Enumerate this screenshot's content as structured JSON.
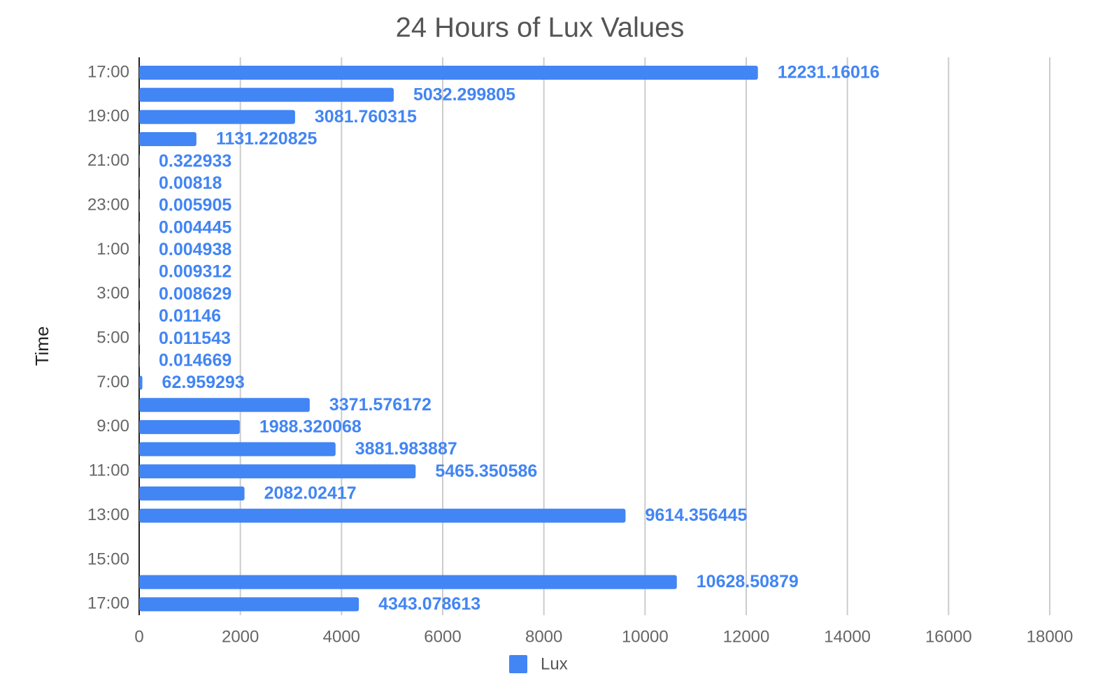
{
  "chart_data": {
    "type": "hbar",
    "title": "24 Hours of Lux Values",
    "y_label": "Time",
    "categories": [
      "17:00",
      null,
      "19:00",
      null,
      "21:00",
      null,
      "23:00",
      null,
      "1:00",
      null,
      "3:00",
      null,
      "5:00",
      null,
      "7:00",
      null,
      "9:00",
      null,
      "11:00",
      null,
      "13:00",
      null,
      "15:00",
      null,
      "17:00"
    ],
    "series": [
      {
        "name": "Lux",
        "color": "#4285f4",
        "values": [
          12231.16016,
          5032.299805,
          3081.760315,
          1131.220825,
          0.322933,
          0.00818,
          0.005905,
          0.004445,
          0.004938,
          0.009312,
          0.008629,
          0.01146,
          0.011543,
          0.014669,
          62.959293,
          3371.576172,
          1988.320068,
          3881.983887,
          5465.350586,
          2082.02417,
          9614.356445,
          null,
          null,
          10628.50879,
          4343.078613
        ]
      }
    ],
    "xlim": [
      0,
      18000
    ],
    "xticks": [
      0,
      2000,
      4000,
      6000,
      8000,
      10000,
      12000,
      14000,
      16000,
      18000
    ],
    "grid": true,
    "legend": "bottom"
  }
}
